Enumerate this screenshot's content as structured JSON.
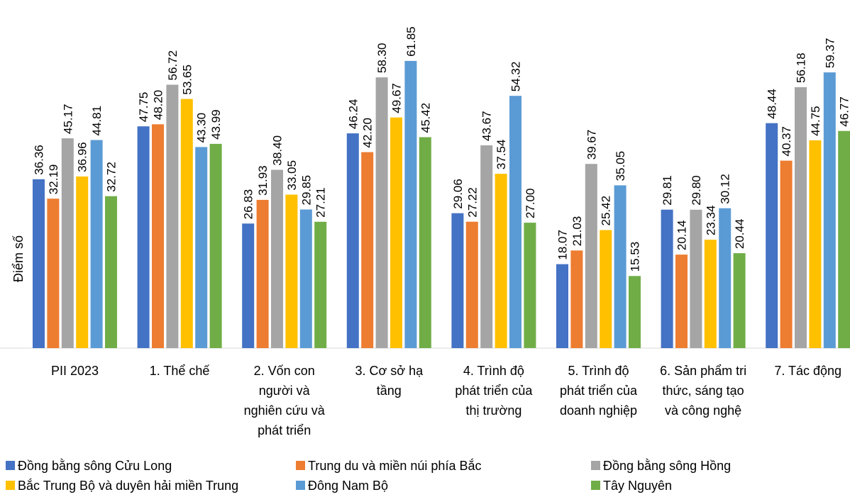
{
  "chart_data": {
    "type": "bar",
    "ylabel": "Điểm số",
    "ylim": [
      0,
      70
    ],
    "grid": false,
    "legend_position": "bottom",
    "categories": [
      [
        "PII 2023"
      ],
      [
        "1. Thể chế"
      ],
      [
        "2. Vốn con",
        "người và",
        "nghiên cứu và",
        "phát triển"
      ],
      [
        "3. Cơ sở hạ",
        "tầng"
      ],
      [
        "4. Trình độ",
        "phát triển của",
        "thị trường"
      ],
      [
        "5. Trình độ",
        "phát triển của",
        "doanh nghiệp"
      ],
      [
        "6. Sản phẩm tri",
        "thức, sáng tạo",
        "và công nghệ"
      ],
      [
        "7. Tác động"
      ]
    ],
    "series": [
      {
        "name": "Đồng bằng sông Cửu Long",
        "color": "#4472C4",
        "values": [
          36.36,
          47.75,
          26.83,
          46.24,
          29.06,
          18.07,
          29.81,
          48.44
        ]
      },
      {
        "name": "Trung du và miền núi phía Bắc",
        "color": "#ED7D31",
        "values": [
          32.19,
          48.2,
          31.93,
          42.2,
          27.22,
          21.03,
          20.14,
          40.37
        ]
      },
      {
        "name": "Đồng bằng sông Hồng",
        "color": "#A5A5A5",
        "values": [
          45.17,
          56.72,
          38.4,
          58.3,
          43.67,
          39.67,
          29.8,
          56.18
        ]
      },
      {
        "name": "Bắc Trung Bộ và duyên hải miền Trung",
        "color": "#FFC000",
        "values": [
          36.96,
          53.65,
          33.05,
          49.67,
          37.54,
          25.42,
          23.34,
          44.75
        ]
      },
      {
        "name": "Đông Nam Bộ",
        "color": "#5B9BD5",
        "values": [
          44.81,
          43.3,
          29.85,
          61.85,
          54.32,
          35.05,
          30.12,
          59.37
        ]
      },
      {
        "name": "Tây Nguyên",
        "color": "#70AD47",
        "values": [
          32.72,
          43.99,
          27.21,
          45.42,
          27.0,
          15.53,
          20.44,
          46.77
        ]
      }
    ]
  }
}
